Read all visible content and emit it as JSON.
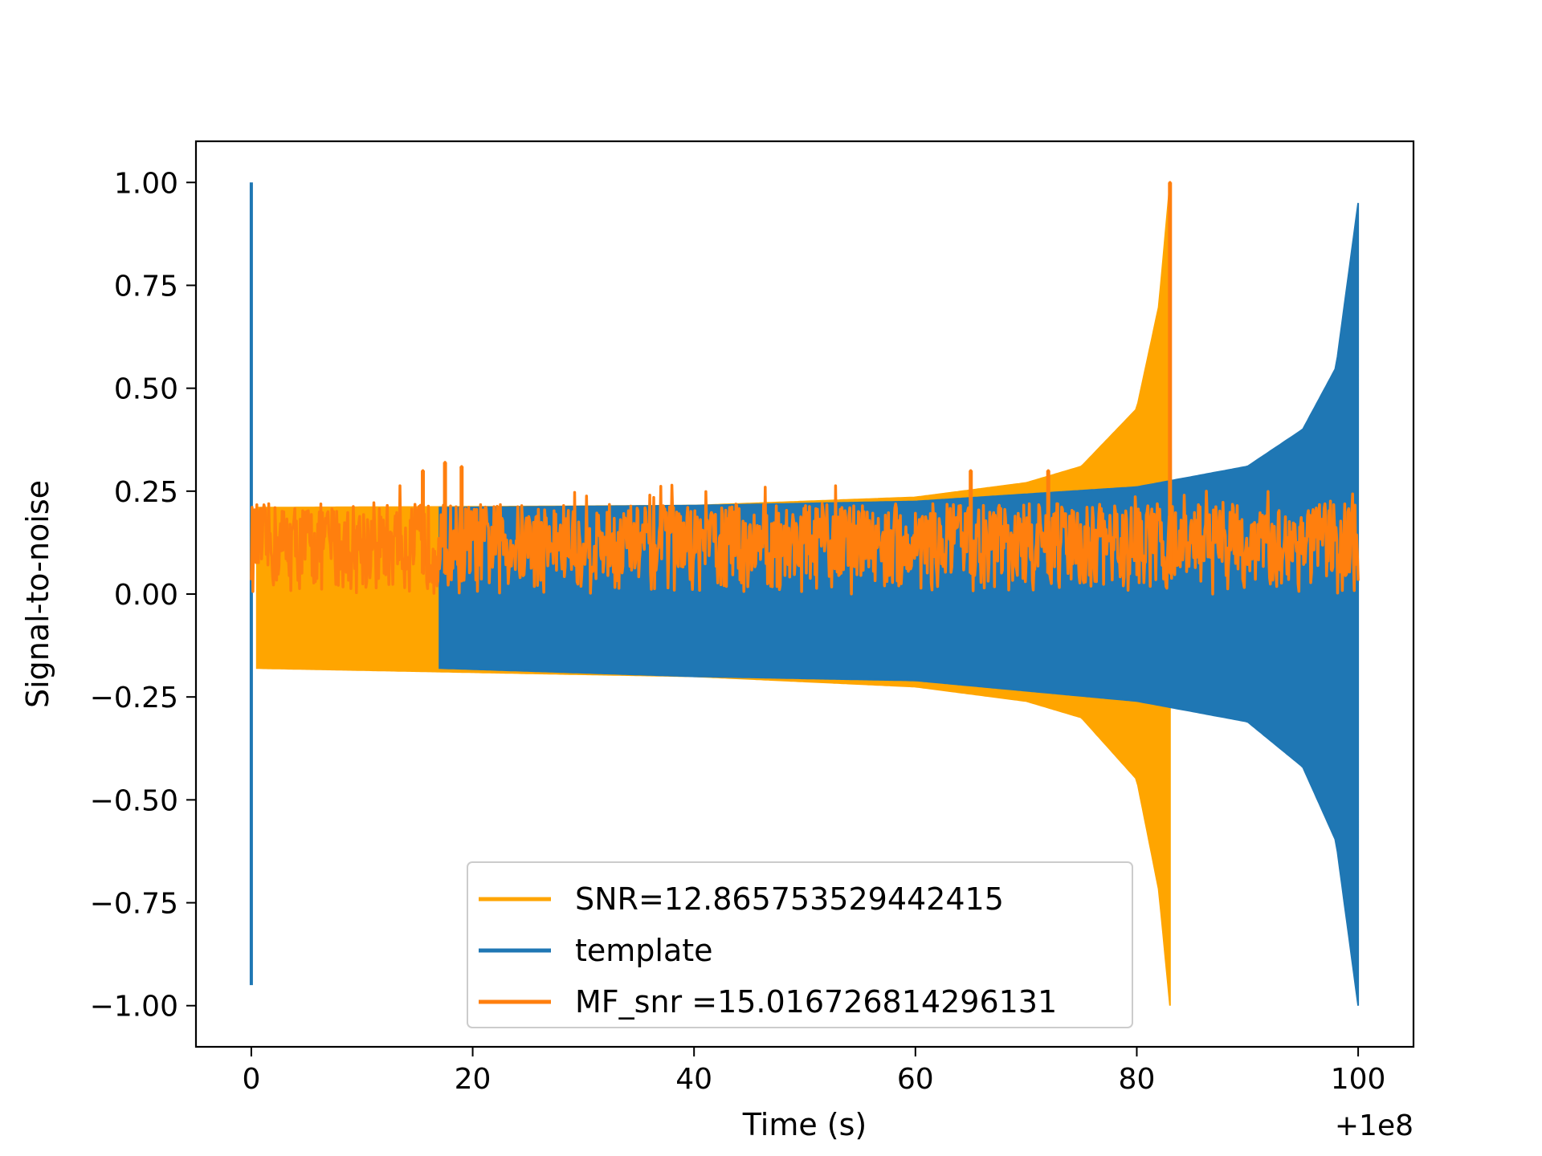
{
  "chart_data": {
    "type": "line",
    "xlabel": "Time (s)",
    "ylabel": "Signal-to-noise",
    "x_offset_label": "+1e8",
    "xlim": [
      -5,
      105
    ],
    "ylim": [
      -1.1,
      1.1
    ],
    "xticks": [
      0,
      20,
      40,
      60,
      80,
      100
    ],
    "yticks": [
      1.0,
      0.75,
      0.5,
      0.25,
      0.0,
      -0.25,
      -0.5,
      -0.75,
      -1.0
    ],
    "xtick_labels": [
      "0",
      "20",
      "40",
      "60",
      "80",
      "100"
    ],
    "ytick_labels": [
      "1.00",
      "0.75",
      "0.50",
      "0.25",
      "0.00",
      "−0.25",
      "−0.50",
      "−0.75",
      "−1.00"
    ],
    "grid": false,
    "legend_position": "bottom-center",
    "series": [
      {
        "name": "SNR=12.865753529442415",
        "color": "#ffa500",
        "style": "chirp",
        "x_start": 0.5,
        "x_end": 83.0,
        "envelope": [
          {
            "x": 0.5,
            "upper": 0.21,
            "lower": -0.18
          },
          {
            "x": 20,
            "upper": 0.212,
            "lower": -0.19
          },
          {
            "x": 40,
            "upper": 0.215,
            "lower": -0.2
          },
          {
            "x": 60,
            "upper": 0.235,
            "lower": -0.225
          },
          {
            "x": 70,
            "upper": 0.27,
            "lower": -0.26
          },
          {
            "x": 75,
            "upper": 0.31,
            "lower": -0.3
          },
          {
            "x": 80,
            "upper": 0.45,
            "lower": -0.45
          },
          {
            "x": 82,
            "upper": 0.7,
            "lower": -0.72
          },
          {
            "x": 83,
            "upper": 1.0,
            "lower": -1.0
          }
        ]
      },
      {
        "name": "template",
        "color": "#1f77b4",
        "style": "chirp",
        "x_start": 17.0,
        "x_end": 100.0,
        "envelope": [
          {
            "x": 17,
            "upper": 0.21,
            "lower": -0.18
          },
          {
            "x": 40,
            "upper": 0.215,
            "lower": -0.2
          },
          {
            "x": 60,
            "upper": 0.225,
            "lower": -0.21
          },
          {
            "x": 80,
            "upper": 0.26,
            "lower": -0.26
          },
          {
            "x": 90,
            "upper": 0.31,
            "lower": -0.31
          },
          {
            "x": 95,
            "upper": 0.4,
            "lower": -0.42
          },
          {
            "x": 98,
            "upper": 0.55,
            "lower": -0.6
          },
          {
            "x": 100,
            "upper": 0.95,
            "lower": -1.0
          }
        ],
        "spike": {
          "x": 0.0,
          "upper": 1.0,
          "lower": -0.95
        }
      },
      {
        "name": " MF_snr =15.016726814296131",
        "color": "#ff7f0e",
        "style": "noise",
        "x_start": 0.0,
        "x_end": 100.0,
        "baseline": 0.0,
        "typical_max": 0.22,
        "peaks": [
          {
            "x": 17.5,
            "y": 0.32
          },
          {
            "x": 19.0,
            "y": 0.31
          },
          {
            "x": 15.5,
            "y": 0.3
          },
          {
            "x": 65.0,
            "y": 0.3
          },
          {
            "x": 72.0,
            "y": 0.3
          },
          {
            "x": 83.0,
            "y": 1.0
          }
        ]
      }
    ]
  }
}
